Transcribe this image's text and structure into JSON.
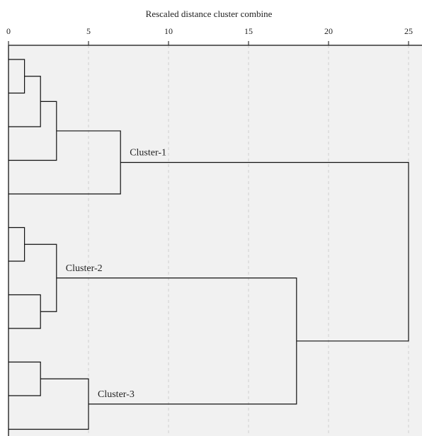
{
  "chart_data": {
    "type": "dendrogram",
    "title": "Rescaled distance cluster combine",
    "x_ticks": [
      0,
      5,
      10,
      15,
      20,
      25
    ],
    "x_tick_labels": [
      "0",
      "5",
      "10",
      "15",
      "20",
      "25"
    ],
    "xlim": [
      0,
      25
    ],
    "grid": true,
    "leaves": 12,
    "merges": [
      {
        "left": "L1",
        "right": "L2",
        "distance": 1
      },
      {
        "left": "m0",
        "right": "L3",
        "distance": 2
      },
      {
        "left": "m1",
        "right": "L4",
        "distance": 3
      },
      {
        "left": "m2",
        "right": "L5",
        "distance": 7,
        "label": "Cluster-1"
      },
      {
        "left": "L6",
        "right": "L7",
        "distance": 1
      },
      {
        "left": "L8",
        "right": "L9",
        "distance": 2
      },
      {
        "left": "m4",
        "right": "m5",
        "distance": 3,
        "label": "Cluster-2"
      },
      {
        "left": "L10",
        "right": "L11",
        "distance": 2
      },
      {
        "left": "m7",
        "right": "L12",
        "distance": 5,
        "label": "Cluster-3"
      },
      {
        "left": "m6",
        "right": "m8",
        "distance": 18
      },
      {
        "left": "m3",
        "right": "m9",
        "distance": 25
      }
    ],
    "cluster_labels": [
      "Cluster-1",
      "Cluster-2",
      "Cluster-3"
    ]
  }
}
